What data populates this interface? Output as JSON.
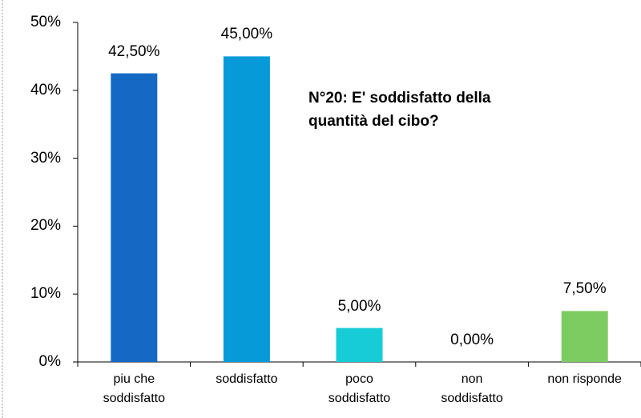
{
  "chart_data": {
    "type": "bar",
    "title": "N°20: E' soddisfatto della\nquantità del cibo?",
    "categories": [
      "piu che\nsoddisfatto",
      "soddisfatto",
      "poco\nsoddisfatto",
      "non\nsoddisfatto",
      "non risponde"
    ],
    "values": [
      42.5,
      45,
      5,
      0,
      7.5
    ],
    "value_labels": [
      "42,50%",
      "45,00%",
      "5,00%",
      "0,00%",
      "7,50%"
    ],
    "colors": [
      "#1469c4",
      "#069bd8",
      "#17ccd6",
      "#17ccd6",
      "#7ccc62"
    ],
    "ylim": [
      0,
      50
    ],
    "yticks": [
      {
        "value": 0,
        "label": "0%"
      },
      {
        "value": 10,
        "label": "10%"
      },
      {
        "value": 20,
        "label": "20%"
      },
      {
        "value": 30,
        "label": "30%"
      },
      {
        "value": 40,
        "label": "40%"
      },
      {
        "value": 50,
        "label": "50%"
      }
    ]
  }
}
